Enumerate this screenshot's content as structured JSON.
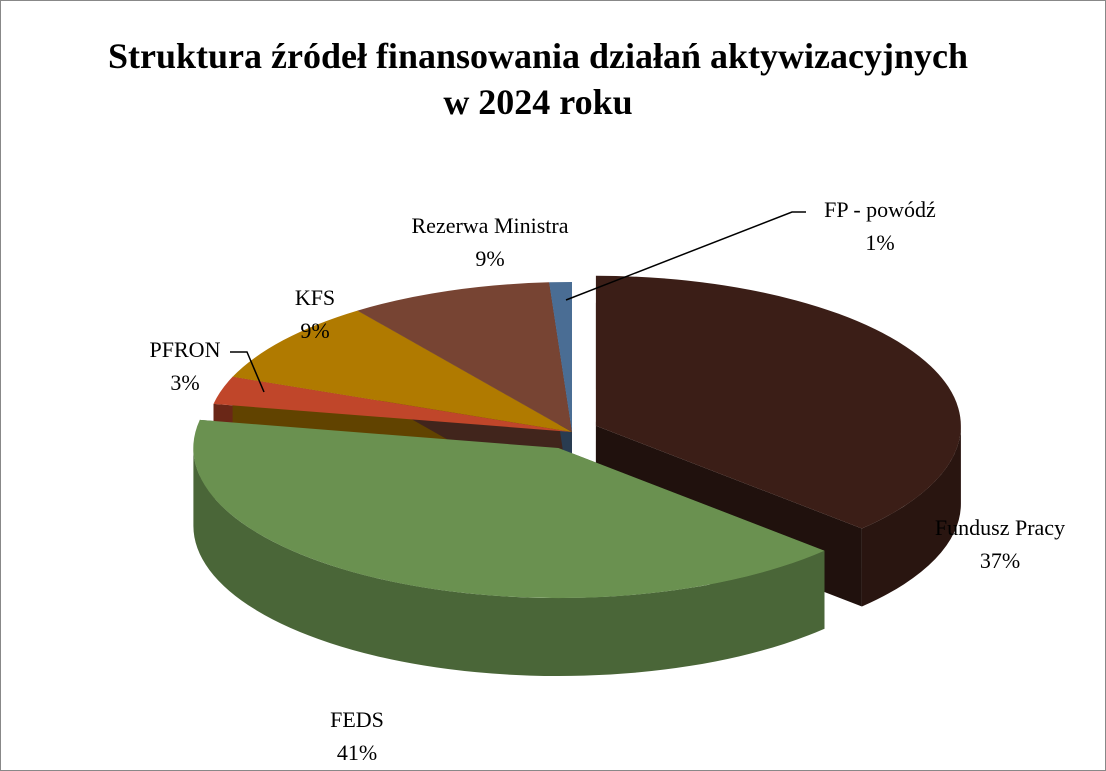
{
  "chart_data": {
    "type": "pie3d",
    "title": "Struktura źródeł finansowania działań aktywizacyjnych w 2024 roku",
    "categories": [
      "Fundusz Pracy",
      "FEDS",
      "PFRON",
      "KFS",
      "Rezerwa Ministra",
      "FP - powódź"
    ],
    "values": [
      37,
      41,
      3,
      9,
      9,
      1
    ],
    "value_labels": [
      "37%",
      "41%",
      "3%",
      "9%",
      "9%",
      "1%"
    ],
    "colors": [
      "#3b1e17",
      "#6a9150",
      "#c0462a",
      "#b07a00",
      "#774433",
      "#4a6d94"
    ]
  }
}
